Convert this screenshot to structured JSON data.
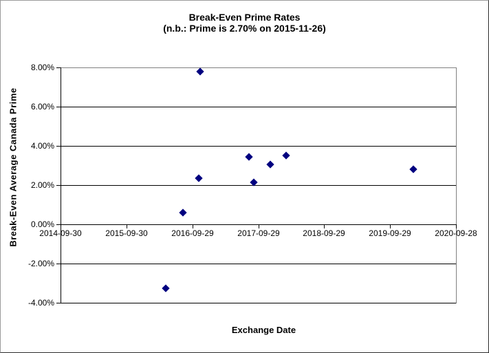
{
  "chart_data": {
    "type": "scatter",
    "title": "Break-Even Prime Rates",
    "subtitle": "(n.b.: Prime is 2.70% on 2015-11-26)",
    "xlabel": "Exchange Date",
    "ylabel": "Break-Even Average Canada Prime",
    "legend": "none",
    "grid": "horizontal",
    "marker": "diamond",
    "marker_color": "#000080",
    "gridline_color": "#000000",
    "plot_border_color": "#808080",
    "background_color": "#ffffff",
    "x_axis": {
      "type": "date",
      "min": "2014-09-30",
      "max": "2020-09-28",
      "ticks": [
        {
          "date": "2014-09-30",
          "label": "2014-09-30"
        },
        {
          "date": "2015-09-30",
          "label": "2015-09-30"
        },
        {
          "date": "2016-09-29",
          "label": "2016-09-29"
        },
        {
          "date": "2017-09-29",
          "label": "2017-09-29"
        },
        {
          "date": "2018-09-29",
          "label": "2018-09-29"
        },
        {
          "date": "2019-09-29",
          "label": "2019-09-29"
        },
        {
          "date": "2020-09-28",
          "label": "2020-09-28"
        }
      ]
    },
    "y_axis": {
      "min": -4,
      "max": 8,
      "tick_step": 2,
      "unit": "%",
      "ticks": [
        {
          "value": 8,
          "label": "8.00%"
        },
        {
          "value": 6,
          "label": "6.00%"
        },
        {
          "value": 4,
          "label": "4.00%"
        },
        {
          "value": 2,
          "label": "2.00%"
        },
        {
          "value": 0,
          "label": "0.00%"
        },
        {
          "value": -2,
          "label": "-2.00%"
        },
        {
          "value": -4,
          "label": "-4.00%"
        }
      ]
    },
    "series": [
      {
        "points": [
          {
            "date": "2016-05-04",
            "value": -3.25
          },
          {
            "date": "2016-08-07",
            "value": 0.6
          },
          {
            "date": "2016-11-05",
            "value": 2.35
          },
          {
            "date": "2016-11-10",
            "value": 7.8
          },
          {
            "date": "2017-08-08",
            "value": 3.45
          },
          {
            "date": "2017-09-04",
            "value": 2.15
          },
          {
            "date": "2017-12-05",
            "value": 3.05
          },
          {
            "date": "2018-03-01",
            "value": 3.5
          },
          {
            "date": "2020-02-03",
            "value": 2.8
          }
        ]
      }
    ]
  }
}
